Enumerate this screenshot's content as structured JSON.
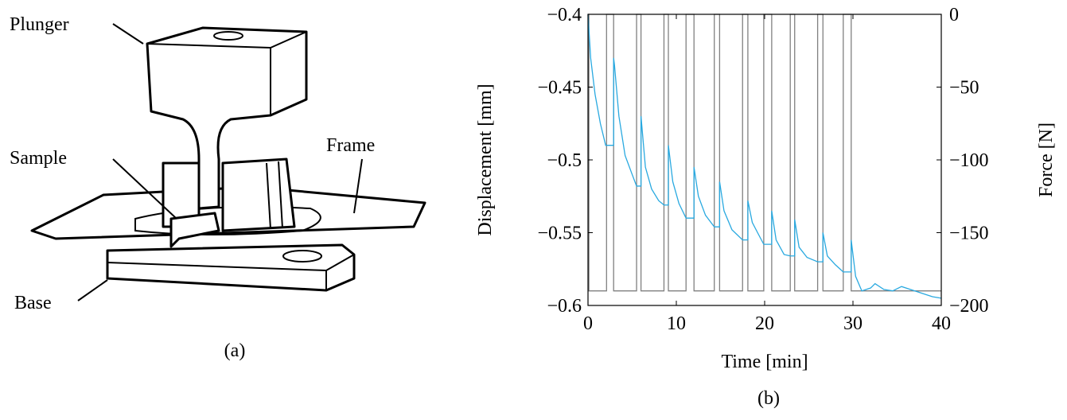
{
  "figure_a": {
    "labels": [
      "Plunger",
      "Sample",
      "Frame",
      "Base"
    ],
    "caption": "(a)"
  },
  "figure_b": {
    "caption": "(b)"
  },
  "chart_data": {
    "type": "line",
    "xlabel": "Time [min]",
    "ylabel": "Displacement [mm]",
    "y2label": "Force [N]",
    "xlim": [
      0,
      40
    ],
    "xticks": [
      0,
      10,
      20,
      30,
      40
    ],
    "ylim": [
      -0.6,
      -0.4
    ],
    "yticks": [
      {
        "value": -0.6,
        "label": "−0.6"
      },
      {
        "value": -0.55,
        "label": "−0.55"
      },
      {
        "value": -0.5,
        "label": "−0.5"
      },
      {
        "value": -0.45,
        "label": "−0.45"
      },
      {
        "value": -0.4,
        "label": "−0.4"
      }
    ],
    "y2lim": [
      -200,
      0
    ],
    "y2ticks": [
      {
        "value": -200,
        "label": "−200"
      },
      {
        "value": -150,
        "label": "−150"
      },
      {
        "value": -100,
        "label": "−100"
      },
      {
        "value": -50,
        "label": "−50"
      },
      0
    ],
    "series": [
      {
        "color": "#808080",
        "axis": "y2",
        "x": [
          0,
          0.1,
          0.1,
          2.1,
          2.1,
          2.9,
          2.9,
          5.5,
          5.5,
          6.0,
          6.0,
          8.6,
          8.6,
          9.1,
          9.1,
          11.1,
          11.1,
          12.0,
          12.0,
          14.3,
          14.3,
          14.9,
          14.9,
          17.5,
          17.5,
          18.1,
          18.1,
          19.9,
          19.9,
          20.8,
          20.8,
          22.9,
          22.9,
          23.4,
          23.4,
          26.0,
          26.0,
          26.6,
          26.6,
          28.9,
          28.9,
          29.8,
          29.8,
          40
        ],
        "values": [
          0,
          0,
          -190,
          -190,
          0,
          0,
          -190,
          -190,
          0,
          0,
          -190,
          -190,
          0,
          0,
          -190,
          -190,
          0,
          0,
          -190,
          -190,
          0,
          0,
          -190,
          -190,
          0,
          0,
          -190,
          -190,
          0,
          0,
          -190,
          -190,
          0,
          0,
          -190,
          -190,
          0,
          0,
          -190,
          -190,
          0,
          0,
          -190,
          -190
        ]
      },
      {
        "color": "#29a9e0",
        "axis": "y",
        "x": [
          0,
          0.3,
          0.8,
          1.4,
          2.0,
          2.9,
          2.9,
          3.0,
          3.5,
          4.2,
          5.0,
          5.5,
          6.0,
          6.0,
          6.5,
          7.2,
          8.0,
          8.6,
          9.1,
          9.1,
          9.6,
          10.3,
          11.1,
          12.0,
          12.0,
          12.5,
          13.3,
          14.3,
          14.9,
          14.9,
          15.4,
          16.3,
          17.5,
          18.1,
          18.1,
          18.6,
          19.2,
          19.9,
          20.8,
          20.8,
          21.3,
          22.2,
          22.9,
          23.4,
          23.4,
          23.9,
          24.8,
          26.0,
          26.6,
          26.6,
          27.1,
          28.0,
          28.9,
          29.8,
          29.8,
          30.3,
          31,
          32,
          32.5,
          33.5,
          34.5,
          35.5,
          36.5,
          38,
          39,
          40
        ],
        "values": [
          -0.4,
          -0.43,
          -0.455,
          -0.475,
          -0.49,
          -0.49,
          -0.43,
          -0.435,
          -0.47,
          -0.497,
          -0.51,
          -0.518,
          -0.518,
          -0.47,
          -0.505,
          -0.52,
          -0.528,
          -0.531,
          -0.531,
          -0.49,
          -0.515,
          -0.53,
          -0.54,
          -0.54,
          -0.505,
          -0.525,
          -0.538,
          -0.546,
          -0.546,
          -0.515,
          -0.535,
          -0.548,
          -0.555,
          -0.555,
          -0.528,
          -0.543,
          -0.55,
          -0.558,
          -0.558,
          -0.535,
          -0.555,
          -0.565,
          -0.566,
          -0.566,
          -0.541,
          -0.56,
          -0.567,
          -0.57,
          -0.57,
          -0.55,
          -0.566,
          -0.572,
          -0.577,
          -0.577,
          -0.555,
          -0.58,
          -0.59,
          -0.588,
          -0.585,
          -0.589,
          -0.59,
          -0.587,
          -0.589,
          -0.592,
          -0.594,
          -0.595
        ]
      }
    ]
  }
}
